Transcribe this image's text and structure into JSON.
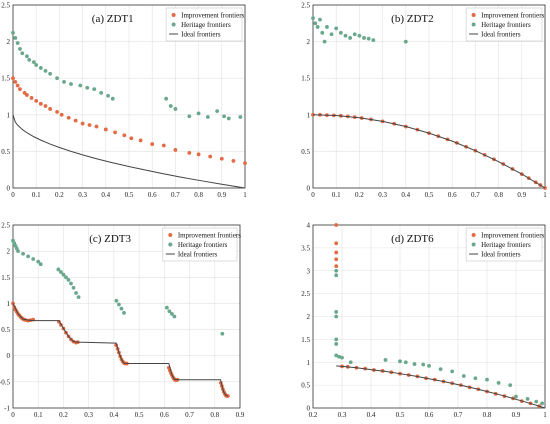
{
  "chart_data": [
    {
      "type": "scatter",
      "title": "(a) ZDT1",
      "xlim": [
        0,
        1
      ],
      "ylim": [
        0,
        2.5
      ],
      "xticks": [
        "0",
        "0.1",
        "0.2",
        "0.3",
        "0.4",
        "0.5",
        "0.6",
        "0.7",
        "0.8",
        "0.9",
        "1"
      ],
      "yticks": [
        "0",
        "0.5",
        "1",
        "1.5",
        "2",
        "2.5"
      ],
      "grid": true,
      "legend": "top-right",
      "series": [
        {
          "name": "Improvement frontiers",
          "kind": "points",
          "color": "#e36a43",
          "x": [
            0.0,
            0.01,
            0.02,
            0.03,
            0.05,
            0.06,
            0.08,
            0.1,
            0.12,
            0.14,
            0.16,
            0.19,
            0.21,
            0.24,
            0.27,
            0.3,
            0.33,
            0.36,
            0.4,
            0.44,
            0.48,
            0.51,
            0.55,
            0.6,
            0.65,
            0.7,
            0.76,
            0.8,
            0.85,
            0.9,
            0.95,
            1.0
          ],
          "y": [
            1.5,
            1.45,
            1.4,
            1.35,
            1.3,
            1.27,
            1.23,
            1.19,
            1.15,
            1.12,
            1.08,
            1.04,
            1.0,
            0.96,
            0.92,
            0.88,
            0.86,
            0.84,
            0.8,
            0.76,
            0.72,
            0.68,
            0.65,
            0.6,
            0.58,
            0.52,
            0.48,
            0.46,
            0.43,
            0.4,
            0.37,
            0.34
          ]
        },
        {
          "name": "Heritage frontiers",
          "kind": "points",
          "color": "#6aa88d",
          "x": [
            0.0,
            0.01,
            0.02,
            0.03,
            0.04,
            0.06,
            0.07,
            0.09,
            0.1,
            0.12,
            0.14,
            0.16,
            0.19,
            0.22,
            0.25,
            0.29,
            0.32,
            0.35,
            0.38,
            0.41,
            0.43,
            0.66,
            0.68,
            0.7,
            0.76,
            0.8,
            0.84,
            0.88,
            0.91,
            0.93,
            0.98
          ],
          "y": [
            2.12,
            2.05,
            1.98,
            1.9,
            1.84,
            1.8,
            1.75,
            1.72,
            1.68,
            1.64,
            1.6,
            1.56,
            1.5,
            1.45,
            1.42,
            1.4,
            1.37,
            1.35,
            1.3,
            1.26,
            1.22,
            1.22,
            1.12,
            1.08,
            0.98,
            1.02,
            0.97,
            1.05,
            0.98,
            0.95,
            0.97
          ]
        },
        {
          "name": "Ideal frontiers",
          "kind": "curve",
          "color": "#444444",
          "x": [
            0,
            0.01,
            0.02,
            0.04,
            0.06,
            0.09,
            0.12,
            0.16,
            0.2,
            0.25,
            0.3,
            0.36,
            0.42,
            0.49,
            0.56,
            0.64,
            0.72,
            0.81,
            0.9,
            1.0
          ],
          "y": [
            1.0,
            0.9,
            0.859,
            0.8,
            0.755,
            0.7,
            0.654,
            0.6,
            0.553,
            0.5,
            0.452,
            0.4,
            0.352,
            0.3,
            0.252,
            0.2,
            0.151,
            0.1,
            0.051,
            0.0
          ]
        }
      ]
    },
    {
      "type": "scatter",
      "title": "(b) ZDT2",
      "xlim": [
        0,
        1
      ],
      "ylim": [
        0,
        2.5
      ],
      "xticks": [
        "0",
        "0.1",
        "0.2",
        "0.3",
        "0.4",
        "0.5",
        "0.6",
        "0.7",
        "0.8",
        "0.9",
        "1"
      ],
      "yticks": [
        "0",
        "0.5",
        "1",
        "1.5",
        "2",
        "2.5"
      ],
      "grid": true,
      "legend": "top-right",
      "series": [
        {
          "name": "Improvement frontiers",
          "kind": "points",
          "color": "#e36a43",
          "x": [
            0.0,
            0.03,
            0.06,
            0.09,
            0.12,
            0.15,
            0.18,
            0.21,
            0.25,
            0.3,
            0.35,
            0.4,
            0.45,
            0.5,
            0.54,
            0.58,
            0.62,
            0.66,
            0.7,
            0.74,
            0.78,
            0.82,
            0.86,
            0.9,
            0.93,
            0.96,
            0.98,
            1.0
          ],
          "y": [
            1.0,
            1.0,
            0.996,
            0.992,
            0.986,
            0.978,
            0.968,
            0.956,
            0.938,
            0.91,
            0.878,
            0.84,
            0.798,
            0.75,
            0.708,
            0.664,
            0.616,
            0.564,
            0.51,
            0.452,
            0.392,
            0.328,
            0.26,
            0.19,
            0.135,
            0.078,
            0.04,
            0.0
          ]
        },
        {
          "name": "Heritage frontiers",
          "kind": "points",
          "color": "#6aa88d",
          "x": [
            0.0,
            0.01,
            0.02,
            0.03,
            0.04,
            0.05,
            0.06,
            0.08,
            0.1,
            0.12,
            0.14,
            0.16,
            0.18,
            0.2,
            0.22,
            0.24,
            0.26,
            0.4
          ],
          "y": [
            2.32,
            2.25,
            2.2,
            2.3,
            2.12,
            2.0,
            2.2,
            2.1,
            2.18,
            2.12,
            2.08,
            2.05,
            2.1,
            2.08,
            2.05,
            2.04,
            2.02,
            2.0
          ]
        },
        {
          "name": "Ideal frontiers",
          "kind": "curve",
          "color": "#444444",
          "x": [
            0,
            0.1,
            0.2,
            0.3,
            0.4,
            0.5,
            0.6,
            0.7,
            0.8,
            0.9,
            1.0
          ],
          "y": [
            1.0,
            0.99,
            0.96,
            0.91,
            0.84,
            0.75,
            0.64,
            0.51,
            0.36,
            0.19,
            0.0
          ]
        }
      ]
    },
    {
      "type": "scatter",
      "title": "(c) ZDT3",
      "xlim": [
        0,
        0.9
      ],
      "ylim": [
        -1,
        2.5
      ],
      "xticks": [
        "0",
        "0.1",
        "0.2",
        "0.3",
        "0.4",
        "0.5",
        "0.6",
        "0.7",
        "0.8",
        "0.9"
      ],
      "yticks": [
        "-1",
        "-0.5",
        "0",
        "0.5",
        "1",
        "1.5",
        "2",
        "2.5"
      ],
      "grid": true,
      "legend": "top-right",
      "series": [
        {
          "name": "Improvement frontiers",
          "kind": "points",
          "color": "#e36a43",
          "x": [
            0.0,
            0.005,
            0.01,
            0.015,
            0.02,
            0.025,
            0.03,
            0.035,
            0.04,
            0.045,
            0.05,
            0.06,
            0.07,
            0.08,
            0.182,
            0.19,
            0.2,
            0.21,
            0.22,
            0.23,
            0.24,
            0.25,
            0.257,
            0.409,
            0.415,
            0.42,
            0.425,
            0.43,
            0.435,
            0.44,
            0.445,
            0.451,
            0.618,
            0.622,
            0.626,
            0.63,
            0.634,
            0.638,
            0.642,
            0.646,
            0.652,
            0.824,
            0.828,
            0.832,
            0.836,
            0.84,
            0.844,
            0.848,
            0.852
          ],
          "y": [
            1.0,
            0.93,
            0.88,
            0.84,
            0.8,
            0.77,
            0.74,
            0.72,
            0.7,
            0.69,
            0.68,
            0.67,
            0.68,
            0.69,
            0.65,
            0.59,
            0.52,
            0.44,
            0.37,
            0.31,
            0.27,
            0.25,
            0.26,
            0.2,
            0.13,
            0.06,
            -0.01,
            -0.07,
            -0.11,
            -0.14,
            -0.15,
            -0.15,
            -0.23,
            -0.28,
            -0.33,
            -0.37,
            -0.41,
            -0.44,
            -0.46,
            -0.47,
            -0.46,
            -0.52,
            -0.58,
            -0.64,
            -0.69,
            -0.73,
            -0.76,
            -0.77,
            -0.77
          ]
        },
        {
          "name": "Heritage frontiers",
          "kind": "points",
          "color": "#6aa88d",
          "x": [
            0.0,
            0.005,
            0.01,
            0.015,
            0.02,
            0.04,
            0.06,
            0.08,
            0.1,
            0.11,
            0.18,
            0.19,
            0.2,
            0.21,
            0.22,
            0.23,
            0.24,
            0.25,
            0.26,
            0.41,
            0.42,
            0.43,
            0.44,
            0.61,
            0.62,
            0.63,
            0.64,
            0.83
          ],
          "y": [
            2.2,
            2.15,
            2.1,
            2.05,
            2.0,
            1.95,
            1.9,
            1.85,
            1.8,
            1.75,
            1.65,
            1.6,
            1.55,
            1.5,
            1.45,
            1.38,
            1.3,
            1.2,
            1.12,
            1.05,
            0.98,
            0.9,
            0.82,
            0.92,
            0.85,
            0.8,
            0.75,
            0.42
          ]
        },
        {
          "name": "Ideal frontiers",
          "kind": "curve",
          "color": "#444444",
          "x": [
            0.0,
            0.02,
            0.04,
            0.06,
            0.083,
            0.182,
            0.2,
            0.22,
            0.24,
            0.258,
            0.409,
            0.42,
            0.43,
            0.44,
            0.452,
            0.618,
            0.63,
            0.64,
            0.652,
            0.823,
            0.835,
            0.845,
            0.852
          ],
          "y": [
            1.0,
            0.8,
            0.7,
            0.68,
            0.67,
            0.67,
            0.52,
            0.37,
            0.27,
            0.26,
            0.24,
            0.06,
            -0.07,
            -0.14,
            -0.15,
            -0.15,
            -0.37,
            -0.45,
            -0.46,
            -0.46,
            -0.69,
            -0.76,
            -0.77
          ]
        }
      ]
    },
    {
      "type": "scatter",
      "title": "(d) ZDT6",
      "xlim": [
        0.2,
        1
      ],
      "ylim": [
        0,
        4
      ],
      "xticks": [
        "0.2",
        "0.3",
        "0.4",
        "0.5",
        "0.6",
        "0.7",
        "0.8",
        "0.9",
        "1"
      ],
      "yticks": [
        "0",
        "0.5",
        "1",
        "1.5",
        "2",
        "2.5",
        "3",
        "3.5",
        "4"
      ],
      "grid": true,
      "legend": "top-right",
      "series": [
        {
          "name": "Improvement frontiers",
          "kind": "points",
          "color": "#e36a43",
          "x": [
            0.28,
            0.28,
            0.28,
            0.28,
            0.28,
            0.3,
            0.32,
            0.35,
            0.38,
            0.41,
            0.44,
            0.47,
            0.5,
            0.53,
            0.56,
            0.59,
            0.62,
            0.65,
            0.68,
            0.71,
            0.74,
            0.77,
            0.8,
            0.83,
            0.86,
            0.89,
            0.92,
            0.95,
            0.98
          ],
          "y": [
            4.0,
            3.6,
            3.4,
            3.25,
            3.1,
            0.91,
            0.9,
            0.88,
            0.86,
            0.83,
            0.81,
            0.78,
            0.75,
            0.72,
            0.69,
            0.65,
            0.62,
            0.58,
            0.54,
            0.5,
            0.45,
            0.41,
            0.36,
            0.31,
            0.26,
            0.21,
            0.15,
            0.1,
            0.04
          ]
        },
        {
          "name": "Heritage frontiers",
          "kind": "points",
          "color": "#6aa88d",
          "x": [
            0.28,
            0.28,
            0.28,
            0.28,
            0.28,
            0.28,
            0.28,
            0.29,
            0.3,
            0.33,
            0.45,
            0.5,
            0.52,
            0.55,
            0.58,
            0.6,
            0.64,
            0.68,
            0.72,
            0.76,
            0.8,
            0.84,
            0.88,
            0.9,
            0.94,
            0.97,
            0.99
          ],
          "y": [
            3.0,
            2.9,
            2.1,
            2.0,
            1.5,
            1.4,
            1.15,
            1.12,
            1.1,
            1.0,
            1.05,
            1.02,
            1.0,
            0.96,
            0.95,
            0.92,
            0.85,
            0.8,
            0.7,
            0.65,
            0.62,
            0.55,
            0.5,
            0.25,
            0.2,
            0.14,
            0.1
          ]
        },
        {
          "name": "Ideal frontiers",
          "kind": "curve",
          "color": "#444444",
          "x": [
            0.28,
            0.35,
            0.4,
            0.45,
            0.5,
            0.55,
            0.6,
            0.65,
            0.7,
            0.75,
            0.8,
            0.85,
            0.9,
            0.95,
            1.0
          ],
          "y": [
            0.92,
            0.88,
            0.84,
            0.8,
            0.75,
            0.7,
            0.64,
            0.58,
            0.51,
            0.44,
            0.36,
            0.28,
            0.19,
            0.1,
            0.0
          ]
        }
      ]
    }
  ]
}
